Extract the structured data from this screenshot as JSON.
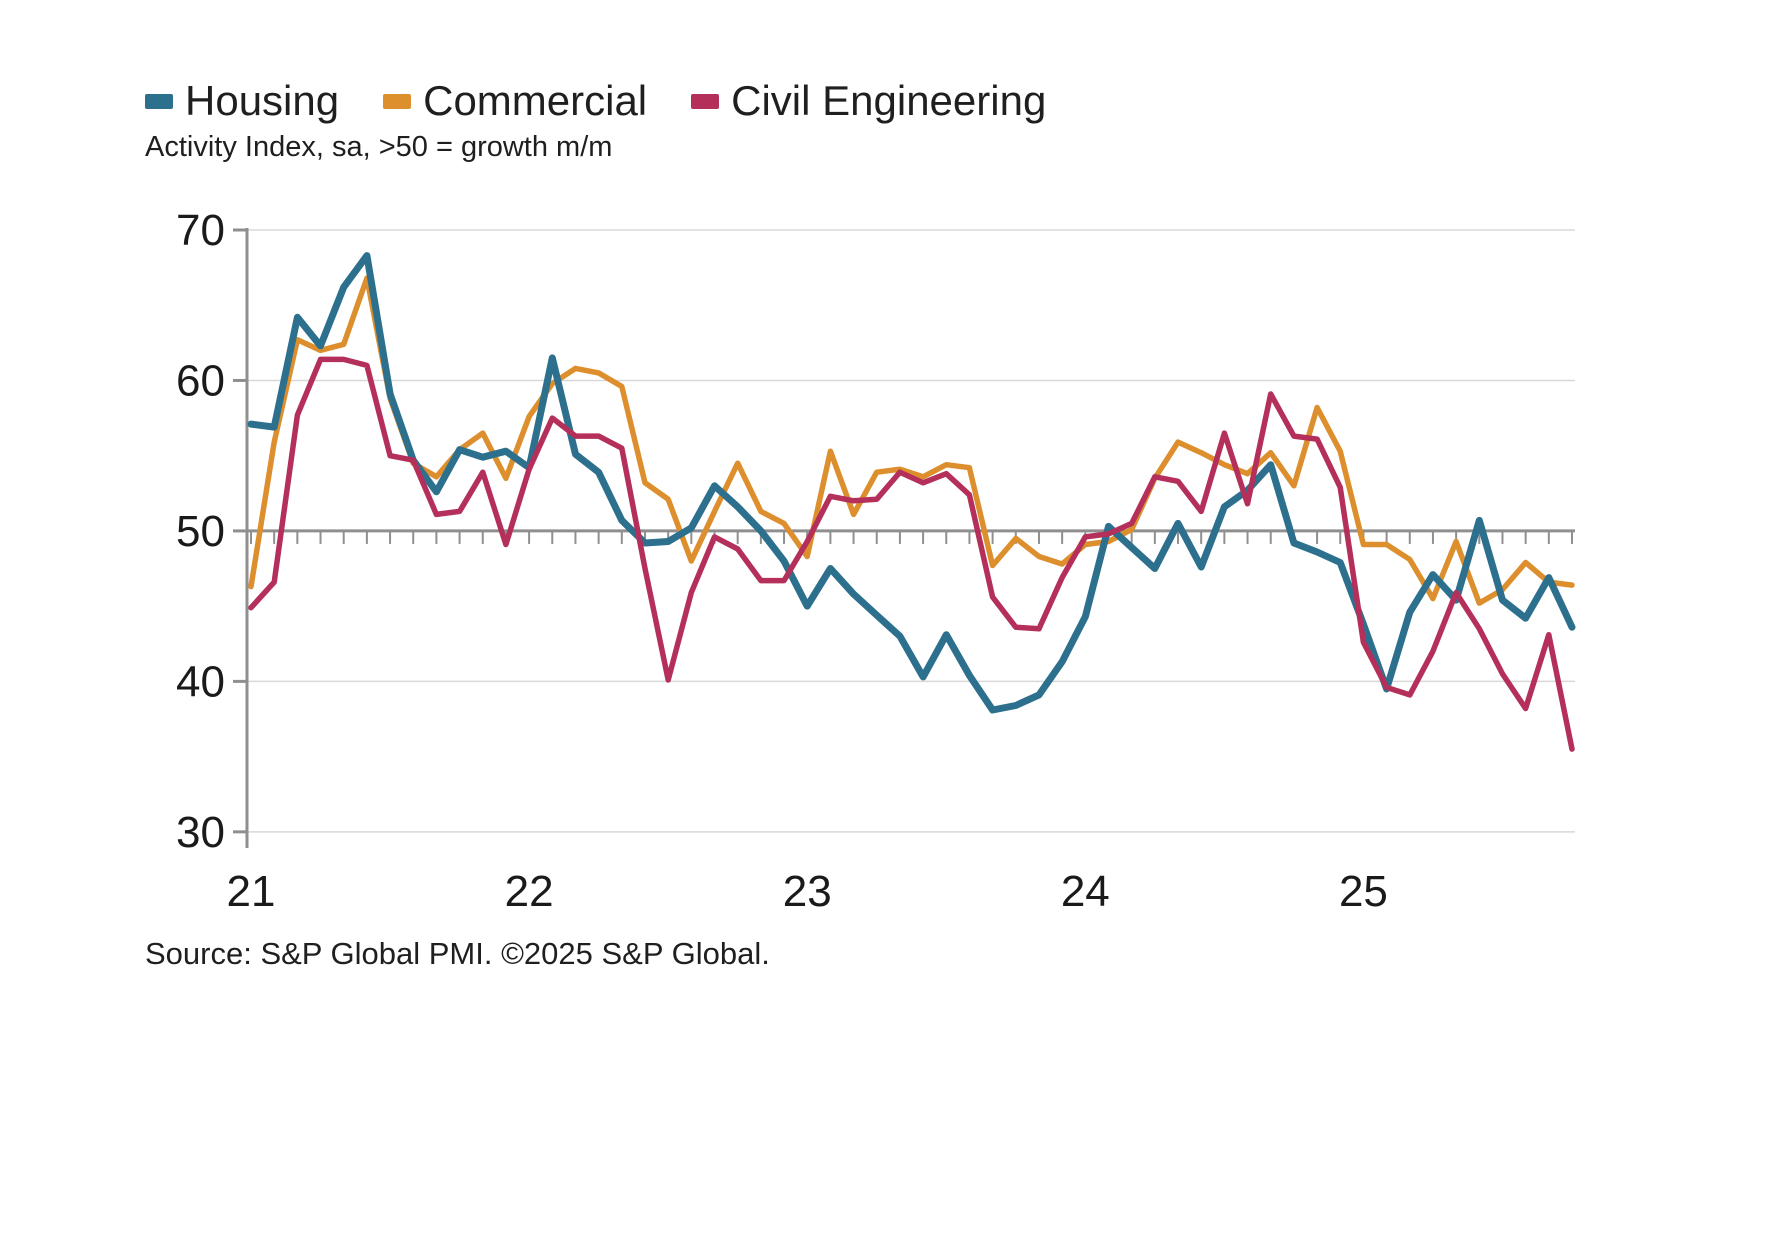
{
  "legend": {
    "items": [
      {
        "label": "Housing",
        "color": "#2D708E"
      },
      {
        "label": "Commercial",
        "color": "#DD8F2D"
      },
      {
        "label": "Civil Engineering",
        "color": "#B4305A"
      }
    ]
  },
  "subtitle": "Activity Index, sa, >50 = growth m/m",
  "source": "Source: S&P Global PMI. ©2025 S&P Global.",
  "chart_data": {
    "type": "line",
    "title": "",
    "xlabel": "",
    "ylabel": "",
    "ylim": [
      30,
      70
    ],
    "y_ticks": [
      70,
      60,
      50,
      40,
      30
    ],
    "baseline": 50,
    "grid": "horizontal",
    "legend_position": "top-left",
    "x": [
      "2021-01",
      "2021-02",
      "2021-03",
      "2021-04",
      "2021-05",
      "2021-06",
      "2021-07",
      "2021-08",
      "2021-09",
      "2021-10",
      "2021-11",
      "2021-12",
      "2022-01",
      "2022-02",
      "2022-03",
      "2022-04",
      "2022-05",
      "2022-06",
      "2022-07",
      "2022-08",
      "2022-09",
      "2022-10",
      "2022-11",
      "2022-12",
      "2023-01",
      "2023-02",
      "2023-03",
      "2023-04",
      "2023-05",
      "2023-06",
      "2023-07",
      "2023-08",
      "2023-09",
      "2023-10",
      "2023-11",
      "2023-12",
      "2024-01",
      "2024-02",
      "2024-03",
      "2024-04",
      "2024-05",
      "2024-06",
      "2024-07",
      "2024-08",
      "2024-09",
      "2024-10",
      "2024-11",
      "2024-12",
      "2025-01",
      "2025-02",
      "2025-03",
      "2025-04",
      "2025-05",
      "2025-06",
      "2025-07",
      "2025-08",
      "2025-09",
      "2025-10"
    ],
    "x_tick_labels": [
      {
        "label": "21",
        "month_index": 0
      },
      {
        "label": "22",
        "month_index": 12
      },
      {
        "label": "23",
        "month_index": 24
      },
      {
        "label": "24",
        "month_index": 36
      },
      {
        "label": "25",
        "month_index": 48
      }
    ],
    "series": [
      {
        "name": "Housing",
        "color": "#2D708E",
        "stroke_width": 7,
        "values": [
          57.1,
          56.9,
          64.2,
          62.3,
          66.2,
          68.3,
          59.1,
          54.7,
          52.6,
          55.4,
          54.9,
          55.3,
          54.2,
          61.5,
          55.1,
          53.9,
          50.7,
          49.2,
          49.3,
          50.2,
          53.0,
          51.6,
          50.0,
          48.0,
          45.0,
          47.5,
          45.8,
          44.4,
          43.0,
          40.3,
          43.1,
          40.4,
          38.1,
          38.4,
          39.1,
          41.3,
          44.3,
          50.3,
          48.9,
          47.5,
          50.5,
          47.6,
          51.6,
          52.7,
          54.4,
          49.2,
          48.6,
          47.9,
          43.8,
          39.5,
          44.6,
          47.1,
          45.4,
          50.7,
          45.4,
          44.2,
          46.9,
          43.6
        ]
      },
      {
        "name": "Commercial",
        "color": "#DD8F2D",
        "stroke_width": 5.5,
        "values": [
          46.3,
          55.9,
          62.7,
          62.0,
          62.4,
          66.8,
          58.8,
          54.5,
          53.6,
          55.4,
          56.5,
          53.5,
          57.6,
          59.8,
          60.8,
          60.5,
          59.6,
          53.2,
          52.1,
          48.0,
          51.3,
          54.5,
          51.3,
          50.5,
          48.3,
          55.3,
          51.1,
          53.9,
          54.1,
          53.6,
          54.4,
          54.2,
          47.7,
          49.5,
          48.3,
          47.8,
          49.1,
          49.3,
          50.1,
          53.5,
          55.9,
          55.2,
          54.4,
          53.8,
          55.2,
          53.0,
          58.2,
          55.3,
          49.1,
          49.1,
          48.1,
          45.5,
          49.3,
          45.2,
          46.1,
          47.9,
          46.6,
          46.4
        ]
      },
      {
        "name": "Civil Engineering",
        "color": "#B4305A",
        "stroke_width": 5.5,
        "values": [
          44.9,
          46.6,
          57.7,
          61.4,
          61.4,
          61.0,
          55.0,
          54.7,
          51.1,
          51.3,
          53.9,
          49.1,
          54.1,
          57.5,
          56.3,
          56.3,
          55.5,
          47.5,
          40.1,
          45.9,
          49.6,
          48.8,
          46.7,
          46.7,
          49.3,
          52.3,
          52.0,
          52.1,
          53.9,
          53.2,
          53.8,
          52.4,
          45.6,
          43.6,
          43.5,
          46.9,
          49.6,
          49.8,
          50.5,
          53.6,
          53.3,
          51.3,
          56.5,
          51.8,
          59.1,
          56.3,
          56.1,
          52.9,
          42.6,
          39.6,
          39.1,
          42.0,
          45.9,
          43.5,
          40.5,
          38.2,
          43.1,
          35.5
        ]
      }
    ]
  }
}
